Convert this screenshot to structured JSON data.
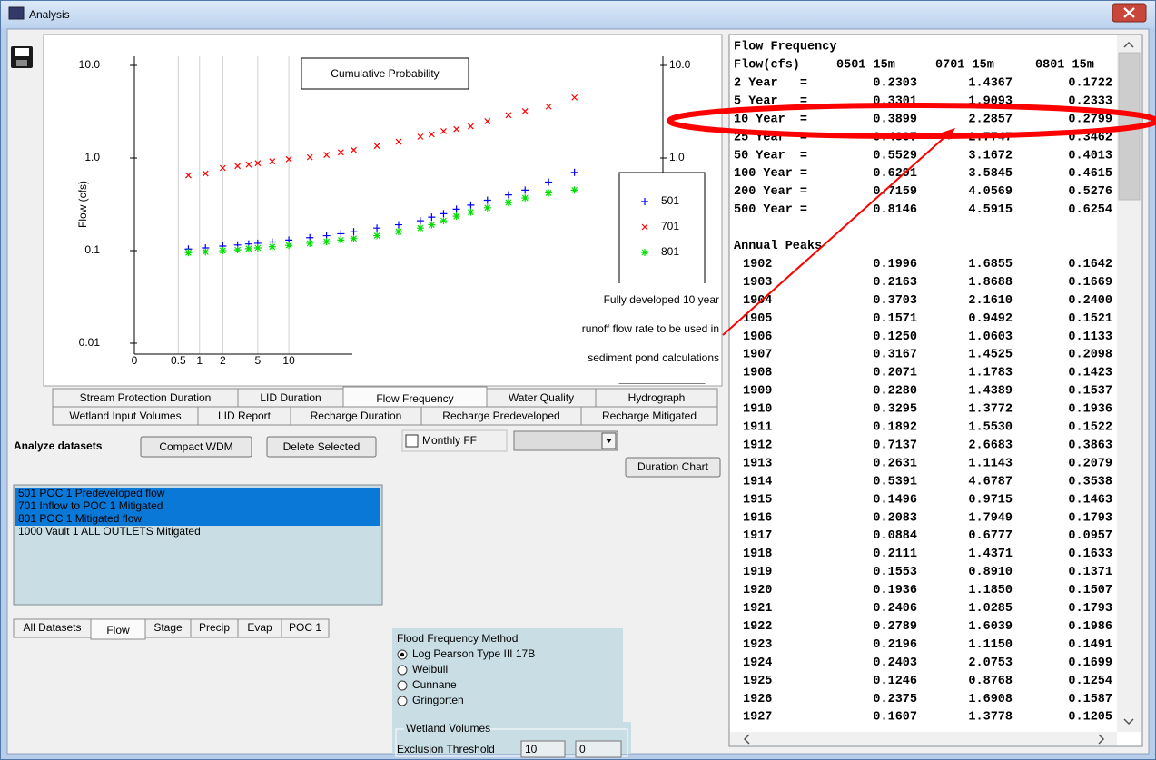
{
  "window": {
    "title": "Analysis"
  },
  "chart_data": {
    "type": "scatter",
    "title": "Cumulative Probability",
    "y_label": "Flow (cfs)",
    "log_y": true,
    "x_scale": "probability",
    "grid": true,
    "legend": "right",
    "xlim": [
      0,
      99.9
    ],
    "xticks": [
      0,
      0.5,
      1,
      2,
      5,
      10
    ],
    "ylim": [
      0.01,
      10
    ],
    "yticks": [
      {
        "value": 10,
        "label": "10.0"
      },
      {
        "value": 1,
        "label": "1.0"
      },
      0.1,
      0.01
    ],
    "y2lim": [
      0.01,
      10
    ],
    "y2ticks": [
      {
        "value": 10,
        "label": "10.0"
      },
      {
        "value": 1,
        "label": "1.0"
      }
    ],
    "x": [
      0.7,
      1.2,
      2,
      3,
      4,
      5,
      7,
      10,
      15,
      20,
      25,
      30,
      40,
      50,
      60,
      65,
      70,
      75,
      80,
      85,
      90,
      93,
      96,
      98
    ],
    "series": [
      {
        "name": "501",
        "color": "#0000ff",
        "marker": "plus",
        "values": [
          0.104,
          0.107,
          0.112,
          0.115,
          0.118,
          0.12,
          0.124,
          0.13,
          0.138,
          0.145,
          0.152,
          0.16,
          0.175,
          0.19,
          0.21,
          0.23,
          0.25,
          0.28,
          0.31,
          0.35,
          0.4,
          0.45,
          0.55,
          0.7
        ]
      },
      {
        "name": "701",
        "color": "#ff0000",
        "marker": "cross",
        "values": [
          0.65,
          0.68,
          0.78,
          0.82,
          0.85,
          0.88,
          0.92,
          0.97,
          1.02,
          1.08,
          1.15,
          1.22,
          1.35,
          1.5,
          1.7,
          1.8,
          1.95,
          2.05,
          2.2,
          2.5,
          2.9,
          3.2,
          3.6,
          4.5
        ]
      },
      {
        "name": "801",
        "color": "#00dd00",
        "marker": "star",
        "values": [
          0.095,
          0.097,
          0.1,
          0.102,
          0.105,
          0.107,
          0.11,
          0.114,
          0.12,
          0.125,
          0.13,
          0.135,
          0.145,
          0.16,
          0.175,
          0.19,
          0.21,
          0.235,
          0.26,
          0.29,
          0.33,
          0.37,
          0.42,
          0.45
        ]
      }
    ]
  },
  "annotation": {
    "lines": [
      "Fully developed 10 year",
      "runoff flow rate to be used in",
      "sediment pond calculations"
    ]
  },
  "chart_tabs": {
    "rows": [
      [
        "Stream Protection Duration",
        "LID Duration",
        "Flow Frequency",
        "Water Quality",
        "Hydrograph"
      ],
      [
        "Wetland Input Volumes",
        "LID Report",
        "Recharge Duration",
        "Recharge Predeveloped",
        "Recharge Mitigated"
      ]
    ],
    "selected": [
      0,
      2
    ]
  },
  "analyze": {
    "label": "Analyze datasets",
    "buttons": [
      "Compact WDM",
      "Delete Selected"
    ],
    "monthly_ff": "Monthly FF",
    "duration_chart": "Duration Chart"
  },
  "datasets": {
    "items": [
      "501 POC 1 Predeveloped flow",
      "701 Inflow to POC 1 Mitigated",
      "801 POC 1 Mitigated flow",
      "1000 Vault  1 ALL OUTLETS Mitigated"
    ],
    "selected": [
      0,
      1,
      2
    ]
  },
  "dataset_tabs": {
    "items": [
      "All Datasets",
      "Flow",
      "Stage",
      "Precip",
      "Evap",
      "POC 1"
    ],
    "selected": 1
  },
  "flood_frequency": {
    "title": "Flood Frequency Method",
    "options": [
      "Log Pearson Type III 17B",
      "Weibull",
      "Cunnane",
      "Gringorten"
    ],
    "selected": 0
  },
  "wetland": {
    "title": "Wetland Volumes",
    "label": "Exclusion Threshold",
    "inputs": [
      "10",
      "0"
    ]
  },
  "output": {
    "title": "Flow Frequency",
    "header": [
      "Flow(cfs)",
      "0501 15m",
      "0701 15m",
      "0801 15m"
    ],
    "rows": [
      [
        "2 Year   =",
        "0.2303",
        "1.4367",
        "0.1722"
      ],
      [
        "5 Year   =",
        "0.3301",
        "1.9093",
        "0.2333"
      ],
      [
        "10 Year  =",
        "0.3899",
        "2.2857",
        "0.2799"
      ],
      [
        "25 Year  =",
        "0.4807",
        "2.7747",
        "0.3462"
      ],
      [
        "50 Year  =",
        "0.5529",
        "3.1672",
        "0.4013"
      ],
      [
        "100 Year =",
        "0.6291",
        "3.5845",
        "0.4615"
      ],
      [
        "200 Year =",
        "0.7159",
        "4.0569",
        "0.5276"
      ],
      [
        "500 Year =",
        "0.8146",
        "4.5915",
        "0.6254"
      ]
    ],
    "peaks_title": "Annual Peaks",
    "peaks": [
      [
        "1902",
        "0.1996",
        "1.6855",
        "0.1642"
      ],
      [
        "1903",
        "0.2163",
        "1.8688",
        "0.1669"
      ],
      [
        "1904",
        "0.3703",
        "2.1610",
        "0.2400"
      ],
      [
        "1905",
        "0.1571",
        "0.9492",
        "0.1521"
      ],
      [
        "1906",
        "0.1250",
        "1.0603",
        "0.1133"
      ],
      [
        "1907",
        "0.3167",
        "1.4525",
        "0.2098"
      ],
      [
        "1908",
        "0.2071",
        "1.1783",
        "0.1423"
      ],
      [
        "1909",
        "0.2280",
        "1.4389",
        "0.1537"
      ],
      [
        "1910",
        "0.3295",
        "1.3772",
        "0.1936"
      ],
      [
        "1911",
        "0.1892",
        "1.5530",
        "0.1522"
      ],
      [
        "1912",
        "0.7137",
        "2.6683",
        "0.3863"
      ],
      [
        "1913",
        "0.2631",
        "1.1143",
        "0.2079"
      ],
      [
        "1914",
        "0.5391",
        "4.6787",
        "0.3538"
      ],
      [
        "1915",
        "0.1496",
        "0.9715",
        "0.1463"
      ],
      [
        "1916",
        "0.2083",
        "1.7949",
        "0.1793"
      ],
      [
        "1917",
        "0.0884",
        "0.6777",
        "0.0957"
      ],
      [
        "1918",
        "0.2111",
        "1.4371",
        "0.1633"
      ],
      [
        "1919",
        "0.1553",
        "0.8910",
        "0.1371"
      ],
      [
        "1920",
        "0.1936",
        "1.1850",
        "0.1507"
      ],
      [
        "1921",
        "0.2406",
        "1.0285",
        "0.1793"
      ],
      [
        "1922",
        "0.2789",
        "1.6039",
        "0.1986"
      ],
      [
        "1923",
        "0.2196",
        "1.1150",
        "0.1491"
      ],
      [
        "1924",
        "0.2403",
        "2.0753",
        "0.1699"
      ],
      [
        "1925",
        "0.1246",
        "0.8768",
        "0.1254"
      ],
      [
        "1926",
        "0.2375",
        "1.6908",
        "0.1587"
      ],
      [
        "1927",
        "0.1607",
        "1.3778",
        "0.1205"
      ]
    ]
  }
}
